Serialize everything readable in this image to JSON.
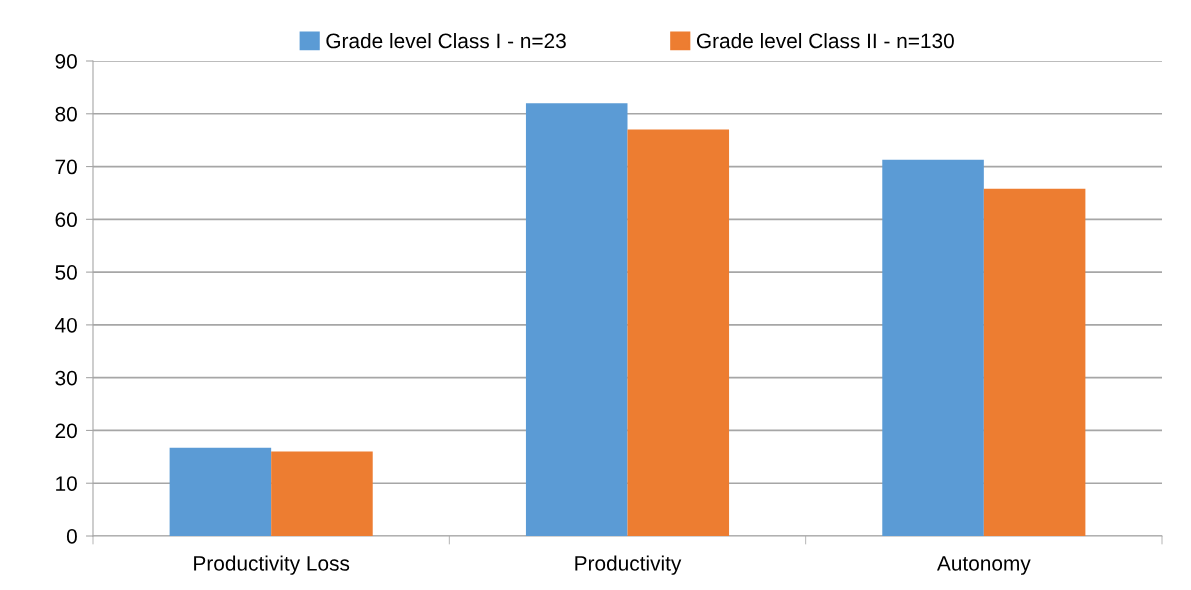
{
  "chart_data": {
    "type": "bar",
    "categories": [
      "Productivity Loss",
      "Productivity",
      "Autonomy"
    ],
    "series": [
      {
        "name": "Grade level Class I - n=23",
        "color": "#5b9bd5",
        "values": [
          16.7,
          82.0,
          71.3
        ]
      },
      {
        "name": "Grade level Class II - n=130",
        "color": "#ed7d31",
        "values": [
          16.0,
          77.0,
          65.8
        ]
      }
    ],
    "ylim": [
      0,
      90
    ],
    "yticks": [
      0,
      10,
      20,
      30,
      40,
      50,
      60,
      70,
      80,
      90
    ],
    "grid": "y",
    "legend": "top"
  }
}
